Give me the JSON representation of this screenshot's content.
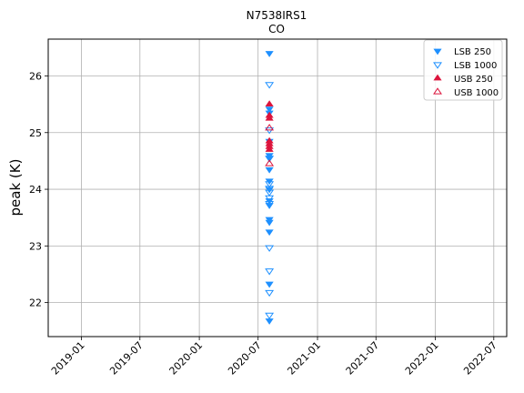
{
  "chart_data": {
    "type": "scatter",
    "title": "N7538IRS1",
    "subtitle": "CO",
    "xlabel": "",
    "ylabel": "peak (K)",
    "x_ticks": [
      "2019-01",
      "2019-07",
      "2020-01",
      "2020-07",
      "2021-01",
      "2021-07",
      "2022-01",
      "2022-07"
    ],
    "xlim": [
      "2018-09-20",
      "2022-08-10"
    ],
    "ylim": [
      21.4,
      26.65
    ],
    "y_ticks": [
      22,
      23,
      24,
      25,
      26
    ],
    "grid": true,
    "legend_position": "top-right",
    "series": [
      {
        "name": "LSB 250",
        "marker": "triangle-down-filled",
        "color": "#1e90ff",
        "points": [
          {
            "x": "2020-08-05",
            "y": 26.4
          },
          {
            "x": "2020-08-05",
            "y": 25.42
          },
          {
            "x": "2020-08-05",
            "y": 25.35
          },
          {
            "x": "2020-08-05",
            "y": 24.85
          },
          {
            "x": "2020-08-05",
            "y": 24.6
          },
          {
            "x": "2020-08-05",
            "y": 24.55
          },
          {
            "x": "2020-08-05",
            "y": 24.35
          },
          {
            "x": "2020-08-05",
            "y": 24.15
          },
          {
            "x": "2020-08-05",
            "y": 24.0
          },
          {
            "x": "2020-08-05",
            "y": 23.8
          },
          {
            "x": "2020-08-05",
            "y": 23.72
          },
          {
            "x": "2020-08-05",
            "y": 23.47
          },
          {
            "x": "2020-08-05",
            "y": 23.42
          },
          {
            "x": "2020-08-05",
            "y": 23.25
          },
          {
            "x": "2020-08-05",
            "y": 22.33
          },
          {
            "x": "2020-08-05",
            "y": 21.68
          }
        ]
      },
      {
        "name": "LSB 1000",
        "marker": "triangle-down-open",
        "color": "#1e90ff",
        "points": [
          {
            "x": "2020-08-05",
            "y": 25.85
          },
          {
            "x": "2020-08-05",
            "y": 25.05
          },
          {
            "x": "2020-08-05",
            "y": 24.55
          },
          {
            "x": "2020-08-05",
            "y": 24.1
          },
          {
            "x": "2020-08-05",
            "y": 24.02
          },
          {
            "x": "2020-08-05",
            "y": 23.95
          },
          {
            "x": "2020-08-05",
            "y": 23.85
          },
          {
            "x": "2020-08-05",
            "y": 23.75
          },
          {
            "x": "2020-08-05",
            "y": 22.97
          },
          {
            "x": "2020-08-05",
            "y": 22.56
          },
          {
            "x": "2020-08-05",
            "y": 22.18
          },
          {
            "x": "2020-08-05",
            "y": 21.78
          }
        ]
      },
      {
        "name": "USB 250",
        "marker": "triangle-up-filled",
        "color": "#dc143c",
        "points": [
          {
            "x": "2020-08-05",
            "y": 25.5
          },
          {
            "x": "2020-08-05",
            "y": 25.3
          },
          {
            "x": "2020-08-05",
            "y": 25.25
          },
          {
            "x": "2020-08-05",
            "y": 24.85
          },
          {
            "x": "2020-08-05",
            "y": 24.8
          },
          {
            "x": "2020-08-05",
            "y": 24.75
          },
          {
            "x": "2020-08-05",
            "y": 24.7
          }
        ]
      },
      {
        "name": "USB 1000",
        "marker": "triangle-up-open",
        "color": "#dc143c",
        "points": [
          {
            "x": "2020-08-05",
            "y": 25.08
          },
          {
            "x": "2020-08-05",
            "y": 24.45
          }
        ]
      }
    ]
  }
}
